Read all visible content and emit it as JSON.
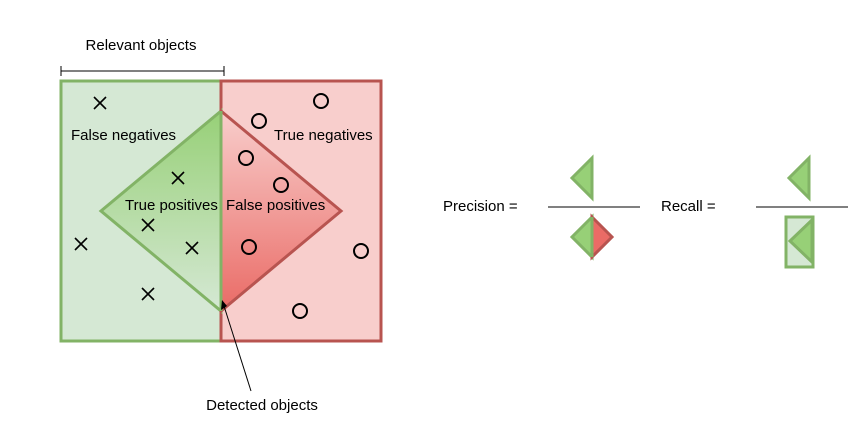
{
  "diagram": {
    "relevant_label": "Relevant objects",
    "detected_label": "Detected objects",
    "regions": {
      "false_negatives": "False negatives",
      "true_negatives": "True negatives",
      "true_positives": "True positives",
      "false_positives": "False positives"
    },
    "formulas": {
      "precision": "Precision =",
      "recall": "Recall ="
    }
  },
  "colors": {
    "green_fill": "#d5e8d4",
    "green_stroke": "#82b366",
    "green_triangle": "#97d077",
    "red_fill": "#f8cecc",
    "red_stroke": "#b85450",
    "red_triangle": "#ea6b66"
  },
  "markers": {
    "relevant_symbol": "cross",
    "non_relevant_symbol": "circle"
  }
}
